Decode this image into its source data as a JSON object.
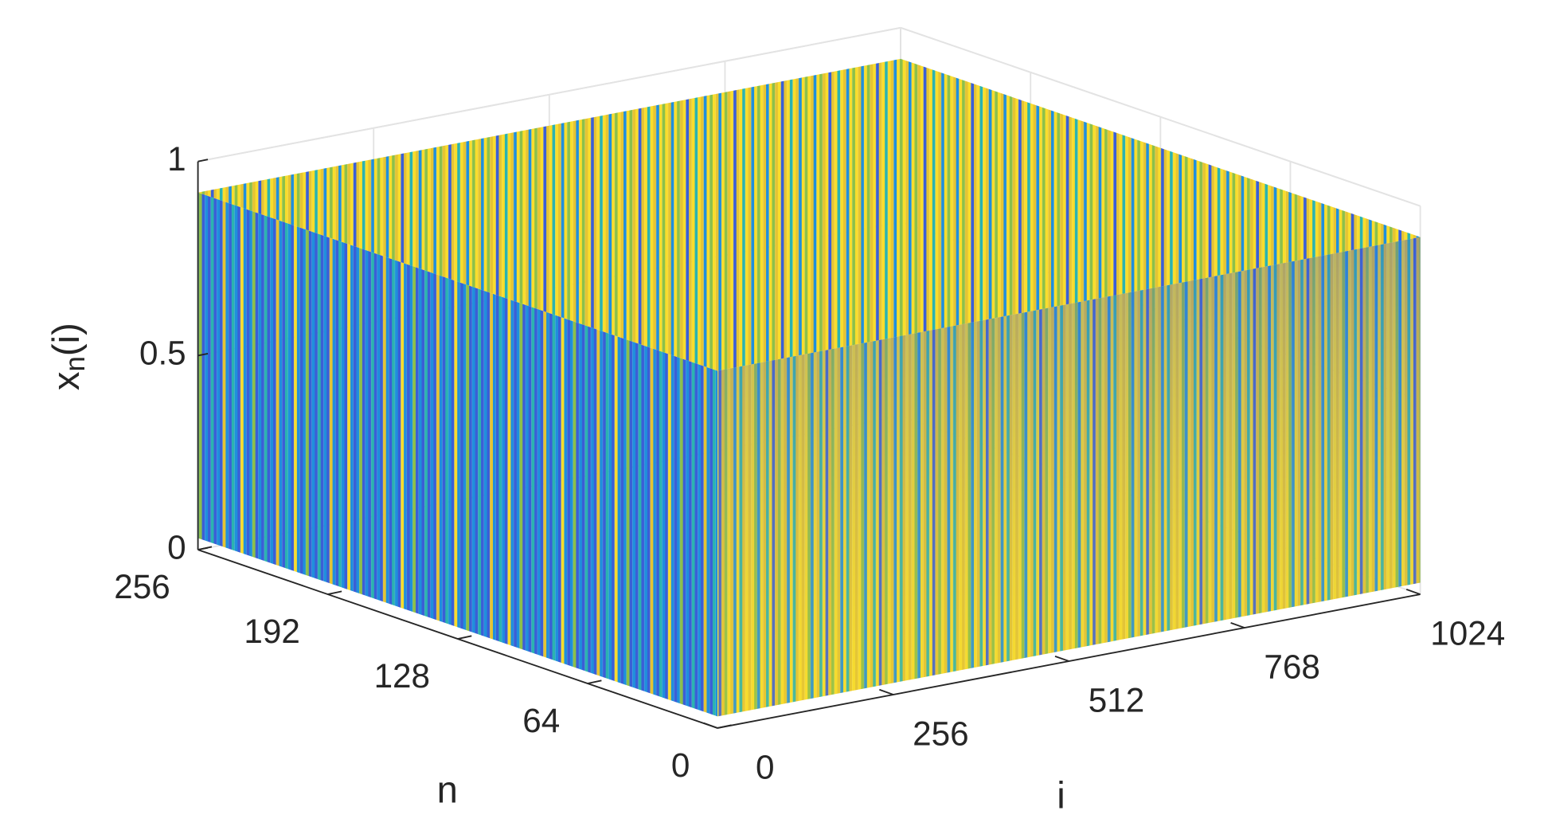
{
  "chart_data": {
    "type": "surface",
    "xlabel": "i",
    "ylabel": "n",
    "zlabel": [
      "x",
      "n",
      "(i)"
    ],
    "xlim": [
      0,
      1024
    ],
    "xticks": [
      0,
      256,
      512,
      768,
      1024
    ],
    "ylim": [
      0,
      256
    ],
    "yticks": [
      0,
      64,
      128,
      192,
      256
    ],
    "zlim": [
      0,
      1
    ],
    "zticks": [
      0,
      0.5,
      1
    ],
    "grid": true,
    "colormap": [
      "#3a5fd6",
      "#1f8fdc",
      "#2bb3b0",
      "#8cc04a",
      "#e5c433",
      "#f9dd2c"
    ]
  }
}
